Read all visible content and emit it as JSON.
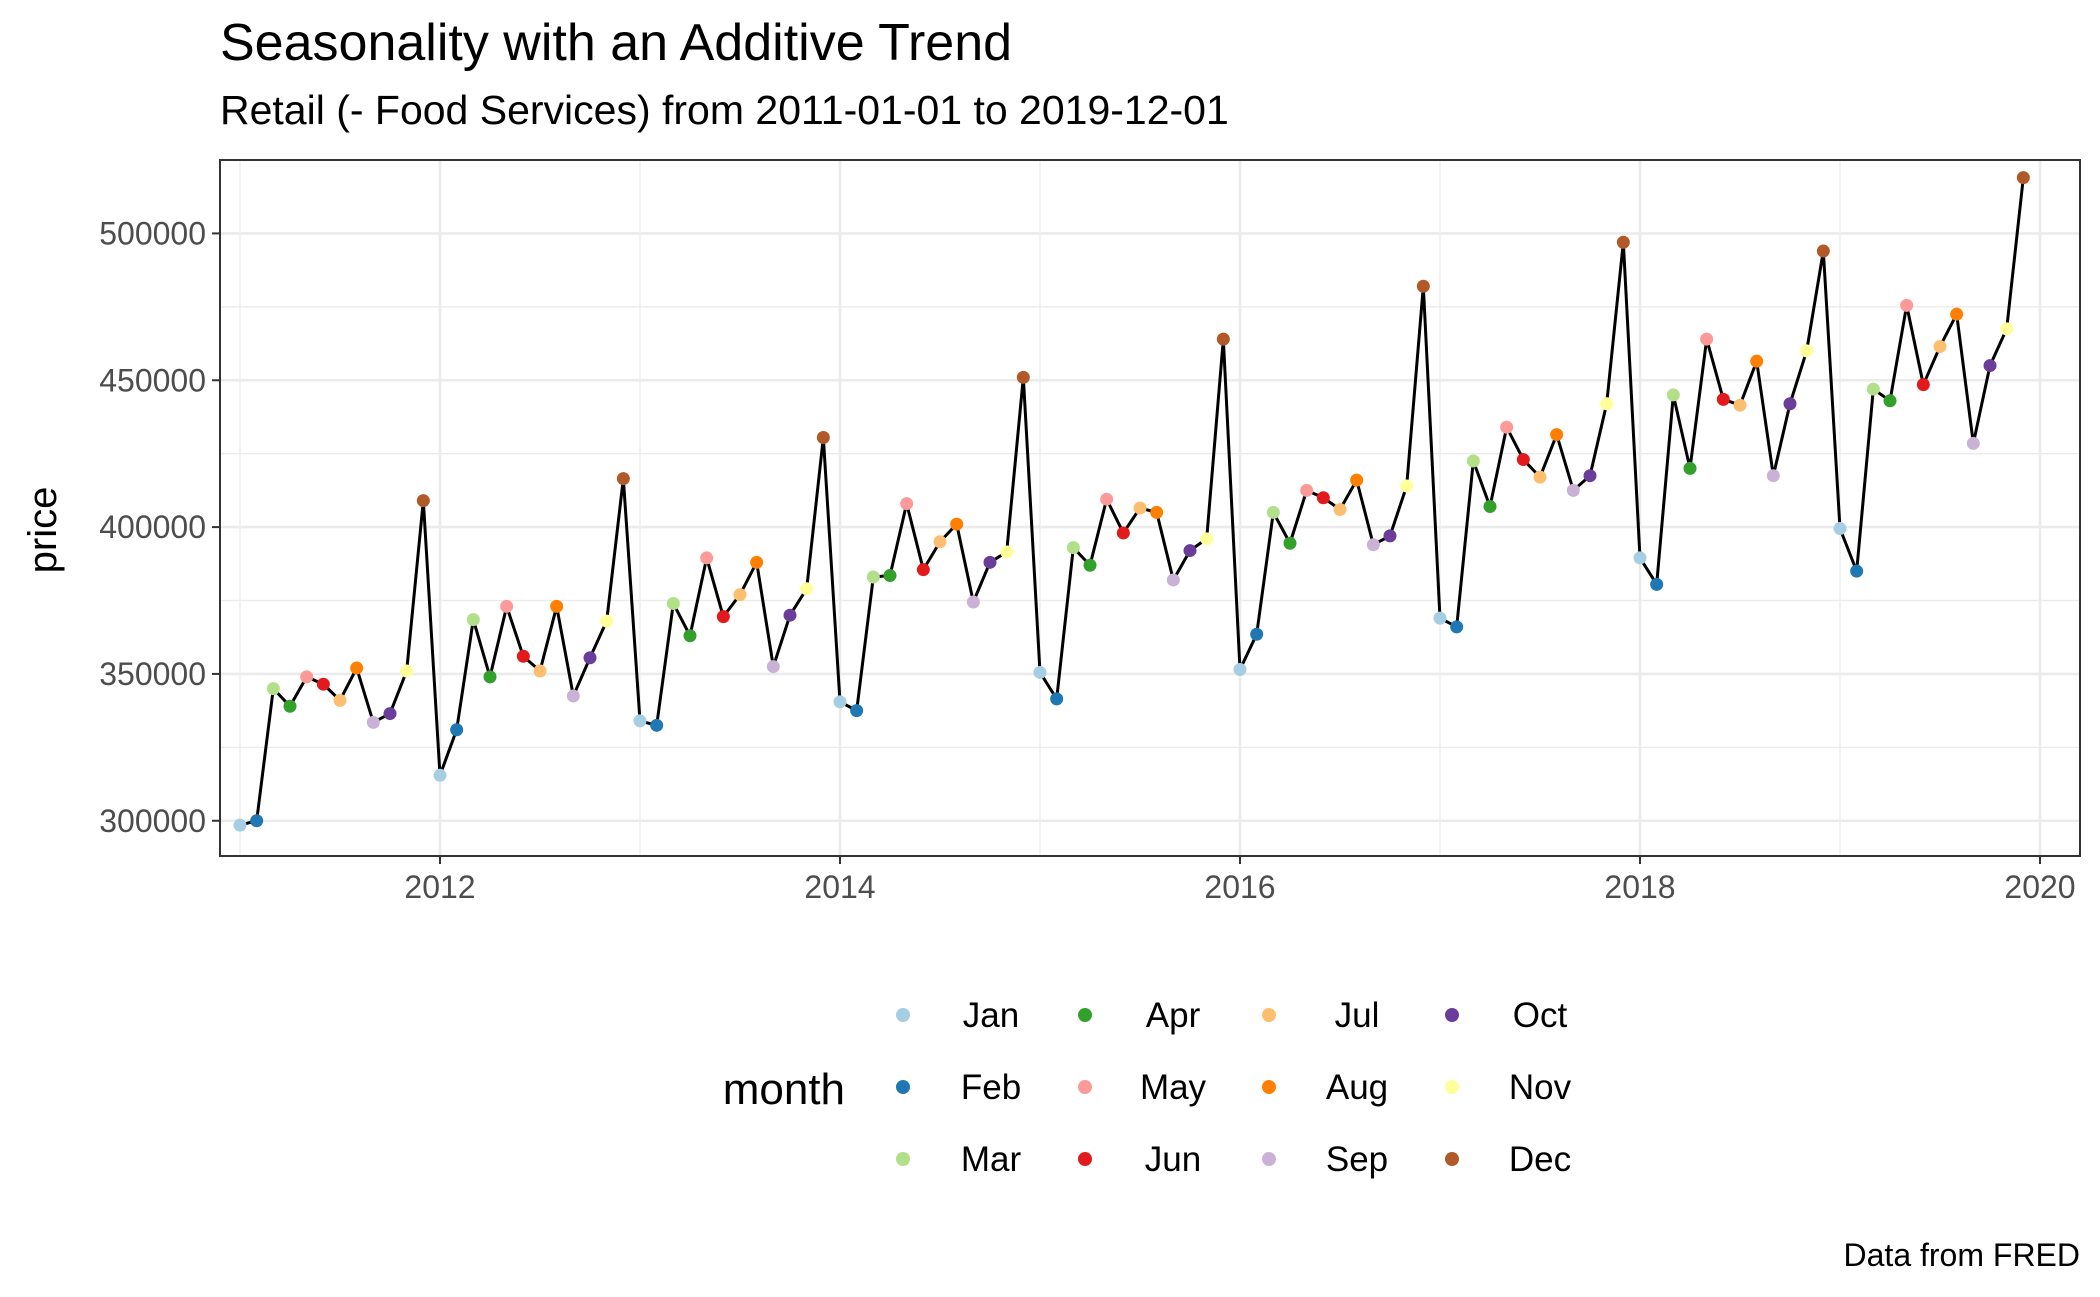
{
  "chart_data": {
    "type": "line",
    "title": "Seasonality with an Additive Trend",
    "subtitle": "Retail (- Food Services) from 2011-01-01 to 2019-12-01",
    "xlabel": "",
    "ylabel": "price",
    "caption": "Data from FRED",
    "xlim": [
      2010.9,
      2020.2
    ],
    "ylim": [
      288000,
      525000
    ],
    "x_ticks": [
      2012,
      2014,
      2016,
      2018,
      2020
    ],
    "y_ticks": [
      300000,
      350000,
      400000,
      450000,
      500000
    ],
    "x_tick_labels": [
      "2012",
      "2014",
      "2016",
      "2018",
      "2020"
    ],
    "y_tick_labels": [
      "300000",
      "350000",
      "400000",
      "450000",
      "500000"
    ],
    "grid": true,
    "legend": {
      "title": "month",
      "position": "bottom",
      "entries": [
        {
          "label": "Jan",
          "color": "#A6CEE3"
        },
        {
          "label": "Feb",
          "color": "#1F78B4"
        },
        {
          "label": "Mar",
          "color": "#B2DF8A"
        },
        {
          "label": "Apr",
          "color": "#33A02C"
        },
        {
          "label": "May",
          "color": "#FB9A99"
        },
        {
          "label": "Jun",
          "color": "#E31A1C"
        },
        {
          "label": "Jul",
          "color": "#FDBF6F"
        },
        {
          "label": "Aug",
          "color": "#FF7F00"
        },
        {
          "label": "Sep",
          "color": "#CAB2D6"
        },
        {
          "label": "Oct",
          "color": "#6A3D9A"
        },
        {
          "label": "Nov",
          "color": "#FFFF99"
        },
        {
          "label": "Dec",
          "color": "#B15928"
        }
      ]
    },
    "line_color": "#000000",
    "start_year": 2011,
    "series": [
      {
        "year": 2011,
        "values": [
          298500,
          300000,
          345000,
          339000,
          349000,
          346500,
          341000,
          352000,
          333500,
          336500,
          351000,
          409000
        ]
      },
      {
        "year": 2012,
        "values": [
          315500,
          331000,
          368500,
          349000,
          373000,
          356000,
          351000,
          373000,
          342500,
          355500,
          368000,
          416500
        ]
      },
      {
        "year": 2013,
        "values": [
          334000,
          332500,
          374000,
          363000,
          389500,
          369500,
          377000,
          388000,
          352500,
          370000,
          379000,
          430500
        ]
      },
      {
        "year": 2014,
        "values": [
          340500,
          337500,
          383000,
          383500,
          408000,
          385500,
          395000,
          401000,
          374500,
          388000,
          391500,
          451000
        ]
      },
      {
        "year": 2015,
        "values": [
          350500,
          341500,
          393000,
          387000,
          409500,
          398000,
          406500,
          405000,
          382000,
          392000,
          396000,
          464000
        ]
      },
      {
        "year": 2016,
        "values": [
          351500,
          363500,
          405000,
          394500,
          412500,
          410000,
          406000,
          416000,
          394000,
          397000,
          414000,
          482000
        ]
      },
      {
        "year": 2017,
        "values": [
          369000,
          366000,
          422500,
          407000,
          434000,
          423000,
          417000,
          431500,
          412500,
          417500,
          442000,
          497000
        ]
      },
      {
        "year": 2018,
        "values": [
          389500,
          380500,
          445000,
          420000,
          464000,
          443500,
          441500,
          456500,
          417500,
          442000,
          460000,
          494000
        ]
      },
      {
        "year": 2019,
        "values": [
          399500,
          385000,
          447000,
          443000,
          475500,
          448500,
          461500,
          472500,
          428500,
          455000,
          467500,
          519000
        ]
      }
    ]
  }
}
